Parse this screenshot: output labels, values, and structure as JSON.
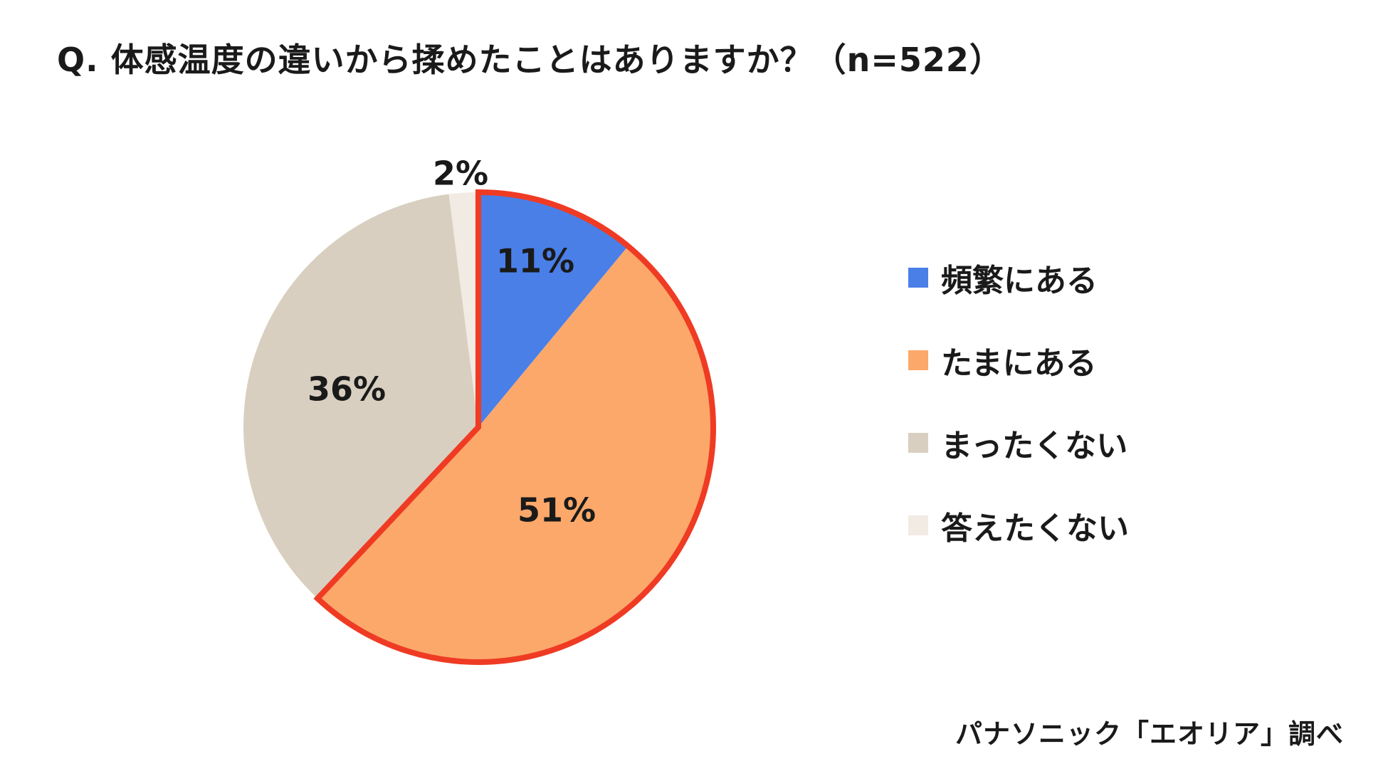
{
  "title": "Q. 体感温度の違いから揉めたことはありますか？（n=522）",
  "source": "パナソニック「エオリア」調べ",
  "chart_data": {
    "type": "pie",
    "slices": [
      {
        "label": "頻繁にある",
        "value": 11,
        "display": "11%",
        "color": "#4a7fe8"
      },
      {
        "label": "たまにある",
        "value": 51,
        "display": "51%",
        "color": "#fca86a"
      },
      {
        "label": "まったくない",
        "value": 36,
        "display": "36%",
        "color": "#d8cfc0"
      },
      {
        "label": "答えたくない",
        "value": 2,
        "display": "2%",
        "color": "#f1ebe3"
      }
    ],
    "highlight_color": "#ef3b24",
    "legend_position": "right",
    "start_angle": "12 o'clock, clockwise"
  }
}
